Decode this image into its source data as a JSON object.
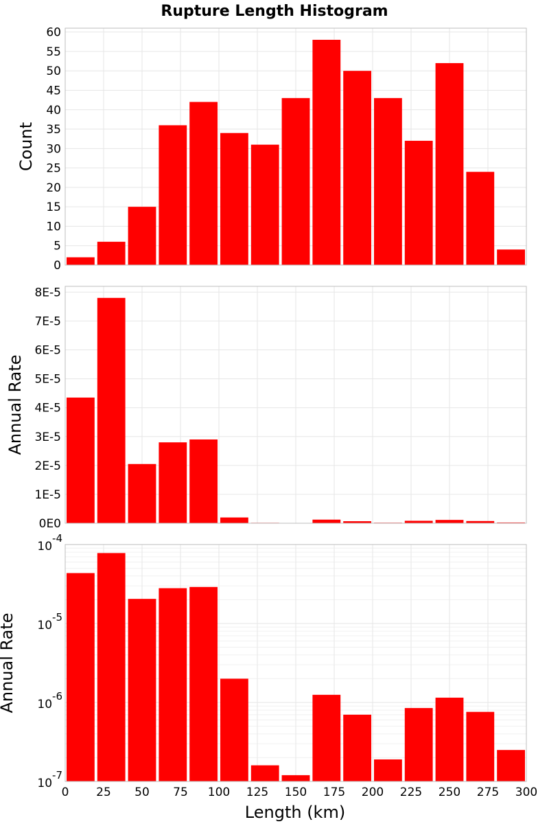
{
  "title": "Rupture Length Histogram",
  "xlabel": "Length (km)",
  "bar_color": "#ff0000",
  "chart_data": [
    {
      "type": "bar",
      "ylabel": "Count",
      "xlim": [
        0,
        300
      ],
      "ylim": [
        0,
        61
      ],
      "yscale": "linear",
      "grid": true,
      "bin_width": 20,
      "x": [
        10,
        30,
        50,
        70,
        90,
        110,
        130,
        150,
        170,
        190,
        210,
        230,
        250,
        270,
        290
      ],
      "values": [
        2,
        6,
        15,
        36,
        42,
        34,
        31,
        43,
        58,
        50,
        43,
        32,
        52,
        24,
        4
      ],
      "yticks": [
        {
          "v": 0,
          "label": "0"
        },
        {
          "v": 5,
          "label": "5"
        },
        {
          "v": 10,
          "label": "10"
        },
        {
          "v": 15,
          "label": "15"
        },
        {
          "v": 20,
          "label": "20"
        },
        {
          "v": 25,
          "label": "25"
        },
        {
          "v": 30,
          "label": "30"
        },
        {
          "v": 35,
          "label": "35"
        },
        {
          "v": 40,
          "label": "40"
        },
        {
          "v": 45,
          "label": "45"
        },
        {
          "v": 50,
          "label": "50"
        },
        {
          "v": 55,
          "label": "55"
        },
        {
          "v": 60,
          "label": "60"
        }
      ]
    },
    {
      "type": "bar",
      "ylabel": "Annual Rate",
      "xlim": [
        0,
        300
      ],
      "ylim": [
        0,
        8.2e-05
      ],
      "yscale": "linear",
      "grid": true,
      "bin_width": 20,
      "x": [
        10,
        30,
        50,
        70,
        90,
        110,
        130,
        150,
        170,
        190,
        210,
        230,
        250,
        270,
        290
      ],
      "values": [
        4.35e-05,
        7.8e-05,
        2.05e-05,
        2.8e-05,
        2.9e-05,
        2e-06,
        1.6e-07,
        1.2e-07,
        1.25e-06,
        7e-07,
        1.9e-07,
        8.5e-07,
        1.15e-06,
        7.6e-07,
        2.5e-07
      ],
      "yticks": [
        {
          "v": 0,
          "label": "0E0"
        },
        {
          "v": 1e-05,
          "label": "1E-5"
        },
        {
          "v": 2e-05,
          "label": "2E-5"
        },
        {
          "v": 3e-05,
          "label": "3E-5"
        },
        {
          "v": 4e-05,
          "label": "4E-5"
        },
        {
          "v": 5e-05,
          "label": "5E-5"
        },
        {
          "v": 6e-05,
          "label": "6E-5"
        },
        {
          "v": 7e-05,
          "label": "7E-5"
        },
        {
          "v": 8e-05,
          "label": "8E-5"
        }
      ]
    },
    {
      "type": "bar",
      "ylabel": "Annual Rate",
      "xlim": [
        0,
        300
      ],
      "ylim": [
        1e-07,
        0.0001
      ],
      "yscale": "log",
      "grid": true,
      "bin_width": 20,
      "x": [
        10,
        30,
        50,
        70,
        90,
        110,
        130,
        150,
        170,
        190,
        210,
        230,
        250,
        270,
        290
      ],
      "values": [
        4.35e-05,
        7.8e-05,
        2.05e-05,
        2.8e-05,
        2.9e-05,
        2e-06,
        1.6e-07,
        1.2e-07,
        1.25e-06,
        7e-07,
        1.9e-07,
        8.5e-07,
        1.15e-06,
        7.6e-07,
        2.5e-07
      ],
      "yticks": [
        {
          "v": 1e-07,
          "base": "10",
          "exp": "-7"
        },
        {
          "v": 1e-06,
          "base": "10",
          "exp": "-6"
        },
        {
          "v": 1e-05,
          "base": "10",
          "exp": "-5"
        },
        {
          "v": 0.0001,
          "base": "10",
          "exp": "-4"
        }
      ],
      "xticks": [
        {
          "v": 0,
          "label": "0"
        },
        {
          "v": 25,
          "label": "25"
        },
        {
          "v": 50,
          "label": "50"
        },
        {
          "v": 75,
          "label": "75"
        },
        {
          "v": 100,
          "label": "100"
        },
        {
          "v": 125,
          "label": "125"
        },
        {
          "v": 150,
          "label": "150"
        },
        {
          "v": 175,
          "label": "175"
        },
        {
          "v": 200,
          "label": "200"
        },
        {
          "v": 225,
          "label": "225"
        },
        {
          "v": 250,
          "label": "250"
        },
        {
          "v": 275,
          "label": "275"
        },
        {
          "v": 300,
          "label": "300"
        }
      ]
    }
  ]
}
